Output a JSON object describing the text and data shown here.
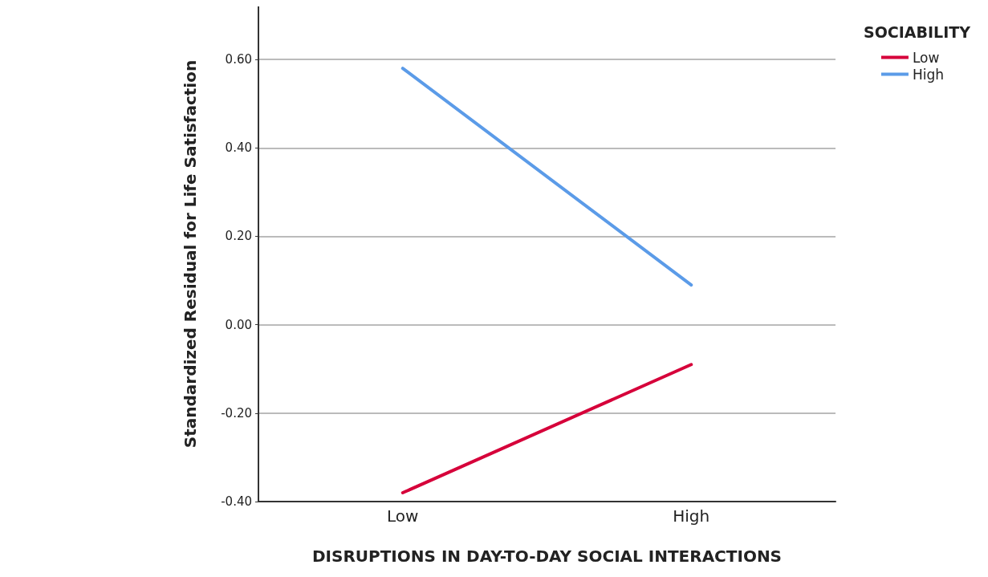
{
  "chart_data": {
    "type": "line",
    "xlabel": "DISRUPTIONS IN DAY-TO-DAY SOCIAL INTERACTIONS",
    "ylabel": "Standardized Residual for Life Satisfaction",
    "legend_title": "SOCIABILITY",
    "categories": [
      "Low",
      "High"
    ],
    "series": [
      {
        "name": "Low",
        "color": "#d6003a",
        "values": [
          -0.38,
          -0.09
        ]
      },
      {
        "name": "High",
        "color": "#5b9be8",
        "values": [
          0.58,
          0.09
        ]
      }
    ],
    "ylim": [
      -0.4,
      0.72
    ],
    "yticks": [
      {
        "value": -0.4,
        "label": "-0.40"
      },
      {
        "value": -0.2,
        "label": "-0.20"
      },
      {
        "value": 0,
        "label": "0.00"
      },
      {
        "value": 0.2,
        "label": "0.20"
      },
      {
        "value": 0.4,
        "label": "0.40"
      },
      {
        "value": 0.6,
        "label": "0.60"
      }
    ],
    "grid": "y",
    "legend": "top right",
    "marker": "none",
    "line_style": "solid"
  }
}
